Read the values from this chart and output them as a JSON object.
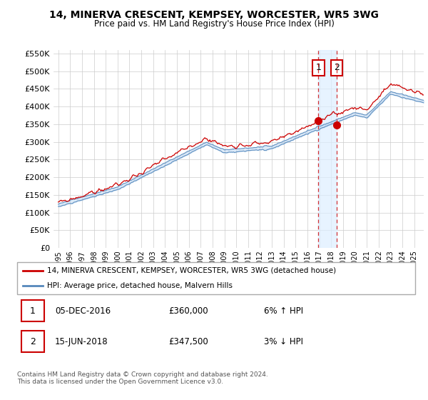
{
  "title": "14, MINERVA CRESCENT, KEMPSEY, WORCESTER, WR5 3WG",
  "subtitle": "Price paid vs. HM Land Registry's House Price Index (HPI)",
  "legend_line1": "14, MINERVA CRESCENT, KEMPSEY, WORCESTER, WR5 3WG (detached house)",
  "legend_line2": "HPI: Average price, detached house, Malvern Hills",
  "footer": "Contains HM Land Registry data © Crown copyright and database right 2024.\nThis data is licensed under the Open Government Licence v3.0.",
  "sale1_date": "05-DEC-2016",
  "sale1_price": "£360,000",
  "sale1_hpi": "6% ↑ HPI",
  "sale1_x": 2016.92,
  "sale1_y": 360000,
  "sale2_date": "15-JUN-2018",
  "sale2_price": "£347,500",
  "sale2_hpi": "3% ↓ HPI",
  "sale2_x": 2018.46,
  "sale2_y": 347500,
  "ylim": [
    0,
    560000
  ],
  "yticks": [
    0,
    50000,
    100000,
    150000,
    200000,
    250000,
    300000,
    350000,
    400000,
    450000,
    500000,
    550000
  ],
  "xlim": [
    1994.6,
    2025.8
  ],
  "xticks": [
    1995,
    1996,
    1997,
    1998,
    1999,
    2000,
    2001,
    2002,
    2003,
    2004,
    2005,
    2006,
    2007,
    2008,
    2009,
    2010,
    2011,
    2012,
    2013,
    2014,
    2015,
    2016,
    2017,
    2018,
    2019,
    2020,
    2021,
    2022,
    2023,
    2024,
    2025
  ],
  "red_color": "#cc0000",
  "blue_color": "#5588bb",
  "blue_fill": "#aaccee",
  "vline1_color": "#cc0000",
  "vline2_color": "#cc0000",
  "shade_color": "#ddeeff",
  "background_color": "#ffffff",
  "grid_color": "#cccccc"
}
